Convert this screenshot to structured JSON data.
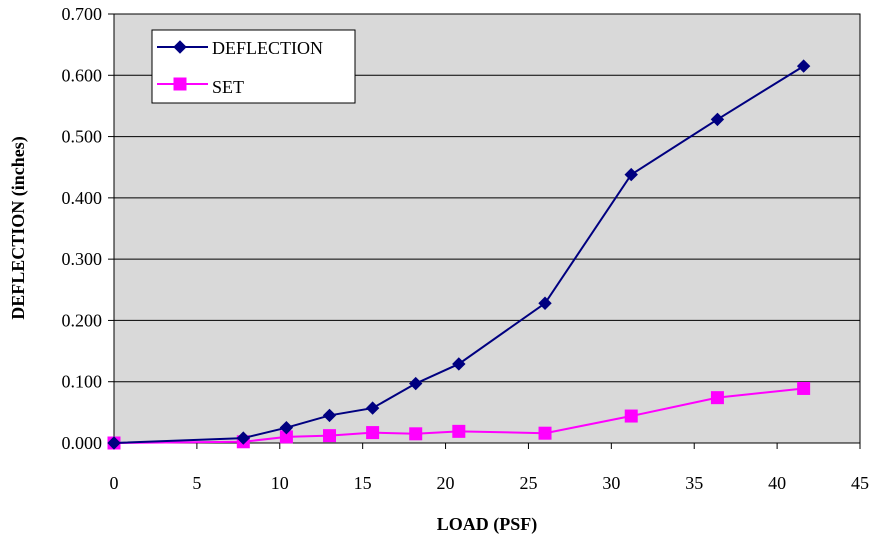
{
  "chart_data": {
    "type": "line",
    "xlabel": "LOAD (PSF)",
    "ylabel": "DEFLECTION (inches)",
    "xlim": [
      0,
      45
    ],
    "ylim": [
      0,
      0.7
    ],
    "xticks": [
      0,
      5,
      10,
      15,
      20,
      25,
      30,
      35,
      40,
      45
    ],
    "xtick_labels": [
      "0",
      "5",
      "10",
      "15",
      "20",
      "25",
      "30",
      "35",
      "40",
      "45"
    ],
    "yticks": [
      0,
      0.1,
      0.2,
      0.3,
      0.4,
      0.5,
      0.6,
      0.7
    ],
    "ytick_labels": [
      "0.000",
      "0.100",
      "0.200",
      "0.300",
      "0.400",
      "0.500",
      "0.600",
      "0.700"
    ],
    "grid": "horizontal",
    "plot_background": "#d9d9d9",
    "legend": "top-left",
    "series": [
      {
        "name": "DEFLECTION",
        "color": "#000080",
        "marker": "diamond",
        "x": [
          0,
          7.8,
          10.4,
          13.0,
          15.6,
          18.2,
          20.8,
          26.0,
          31.2,
          36.4,
          41.6
        ],
        "y": [
          0.0,
          0.008,
          0.025,
          0.045,
          0.057,
          0.097,
          0.129,
          0.228,
          0.438,
          0.528,
          0.615
        ]
      },
      {
        "name": "SET",
        "color": "#ff00ff",
        "marker": "square",
        "x": [
          0,
          7.8,
          10.4,
          13.0,
          15.6,
          18.2,
          20.8,
          26.0,
          31.2,
          36.4,
          41.6
        ],
        "y": [
          0.0,
          0.002,
          0.01,
          0.012,
          0.017,
          0.015,
          0.019,
          0.016,
          0.044,
          0.074,
          0.089
        ]
      }
    ]
  }
}
